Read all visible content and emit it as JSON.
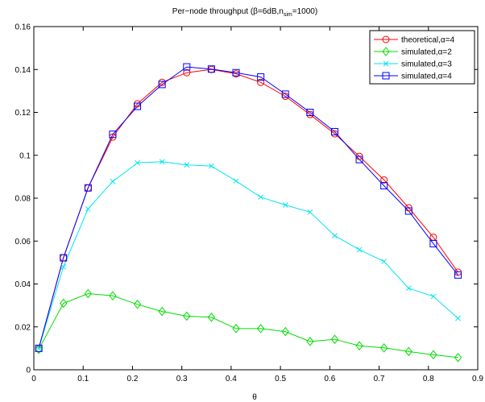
{
  "chart_data": {
    "type": "line",
    "title_main": "Per−node throughput (β=6dB,n",
    "title_sub": "sim",
    "title_tail": "=1000)",
    "xlabel": "θ",
    "ylabel": "",
    "xlim": [
      0,
      0.9
    ],
    "ylim": [
      0,
      0.16
    ],
    "xticks": [
      0,
      0.1,
      0.2,
      0.3,
      0.4,
      0.5,
      0.6,
      0.7,
      0.8,
      0.9
    ],
    "xtick_labels": [
      "0",
      "0.1",
      "0.2",
      "0.3",
      "0.4",
      "0.5",
      "0.6",
      "0.7",
      "0.8",
      "0.9"
    ],
    "yticks": [
      0,
      0.02,
      0.04,
      0.06,
      0.08,
      0.1,
      0.12,
      0.14,
      0.16
    ],
    "ytick_labels": [
      "0",
      "0.02",
      "0.04",
      "0.06",
      "0.08",
      "0.1",
      "0.12",
      "0.14",
      "0.16"
    ],
    "grid": false,
    "legend_position": "top-right",
    "x": [
      0.01,
      0.06,
      0.11,
      0.16,
      0.21,
      0.26,
      0.31,
      0.36,
      0.41,
      0.46,
      0.51,
      0.56,
      0.61,
      0.66,
      0.71,
      0.76,
      0.81,
      0.86
    ],
    "series": [
      {
        "name": "theoretical,α=4",
        "color": "#ff0000",
        "marker": "circle",
        "values": [
          0.0098,
          0.0522,
          0.0848,
          0.1085,
          0.124,
          0.134,
          0.1385,
          0.14,
          0.138,
          0.134,
          0.1275,
          0.119,
          0.11,
          0.0995,
          0.0885,
          0.0755,
          0.0618,
          0.0455
        ]
      },
      {
        "name": "simulated,α=2",
        "color": "#00dd00",
        "marker": "diamond",
        "values": [
          0.0095,
          0.031,
          0.0355,
          0.0345,
          0.0305,
          0.0272,
          0.025,
          0.0245,
          0.0192,
          0.0192,
          0.0178,
          0.0132,
          0.0142,
          0.0112,
          0.0102,
          0.0085,
          0.007,
          0.0057
        ]
      },
      {
        "name": "simulated,α=3",
        "color": "#00e5ee",
        "marker": "x",
        "values": [
          0.01,
          0.048,
          0.075,
          0.0878,
          0.0965,
          0.097,
          0.0955,
          0.095,
          0.088,
          0.0805,
          0.0768,
          0.0735,
          0.0625,
          0.056,
          0.0505,
          0.038,
          0.0342,
          0.024
        ]
      },
      {
        "name": "simulated,α=4",
        "color": "#0000ff",
        "marker": "square",
        "values": [
          0.01,
          0.0522,
          0.0848,
          0.1098,
          0.1228,
          0.133,
          0.1412,
          0.1402,
          0.1385,
          0.1365,
          0.1285,
          0.12,
          0.111,
          0.098,
          0.0858,
          0.074,
          0.0588,
          0.0442
        ]
      }
    ]
  }
}
